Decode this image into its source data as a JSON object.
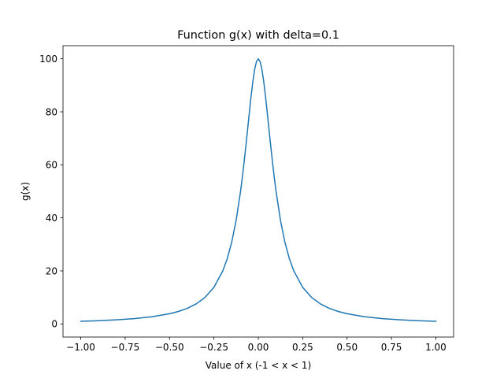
{
  "chart_data": {
    "type": "line",
    "title": "Function g(x) with delta=0.1",
    "xlabel": "Value of x (-1 < x < 1)",
    "ylabel": "g(x)",
    "xlim": [
      -1.1,
      1.1
    ],
    "ylim": [
      -4.95,
      104.95
    ],
    "x_ticks": [
      -1.0,
      -0.75,
      -0.5,
      -0.25,
      0.0,
      0.25,
      0.5,
      0.75,
      1.0
    ],
    "x_tick_labels": [
      "−1.00",
      "−0.75",
      "−0.50",
      "−0.25",
      "0.00",
      "0.25",
      "0.50",
      "0.75",
      "1.00"
    ],
    "y_ticks": [
      0,
      20,
      40,
      60,
      80,
      100
    ],
    "y_tick_labels": [
      "0",
      "20",
      "40",
      "60",
      "80",
      "100"
    ],
    "grid": false,
    "legend": "none",
    "line_color": "#1f77b4",
    "series": [
      {
        "x": [
          -1.0,
          -0.9,
          -0.8,
          -0.7,
          -0.6,
          -0.5,
          -0.45,
          -0.4,
          -0.35,
          -0.3,
          -0.25,
          -0.2,
          -0.175,
          -0.15,
          -0.125,
          -0.1,
          -0.09,
          -0.08,
          -0.07,
          -0.06,
          -0.05,
          -0.04,
          -0.03,
          -0.02,
          -0.01,
          0.0,
          0.01,
          0.02,
          0.03,
          0.04,
          0.05,
          0.06,
          0.07,
          0.08,
          0.09,
          0.1,
          0.125,
          0.15,
          0.175,
          0.2,
          0.25,
          0.3,
          0.35,
          0.4,
          0.45,
          0.5,
          0.6,
          0.7,
          0.8,
          0.9,
          1.0
        ],
        "values": [
          0.99,
          1.22,
          1.54,
          2.0,
          2.7,
          3.85,
          4.71,
          5.88,
          7.55,
          10.0,
          13.79,
          20.0,
          24.62,
          30.77,
          39.02,
          50.0,
          55.25,
          60.98,
          67.11,
          73.53,
          80.0,
          86.21,
          91.74,
          96.15,
          99.01,
          100.0,
          99.01,
          96.15,
          91.74,
          86.21,
          80.0,
          73.53,
          67.11,
          60.98,
          55.25,
          50.0,
          39.02,
          30.77,
          24.62,
          20.0,
          13.79,
          10.0,
          7.55,
          5.88,
          4.71,
          3.85,
          2.7,
          2.0,
          1.54,
          1.22,
          0.99
        ]
      }
    ]
  }
}
